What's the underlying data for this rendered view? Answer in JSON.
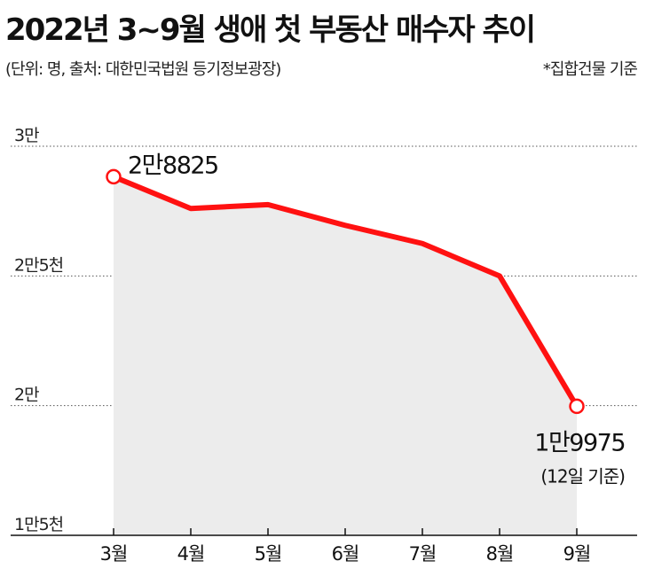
{
  "header": {
    "title": "2022년 3~9월 생애 첫 부동산 매수자 추이",
    "subtitle": "(단위: 명,  출처: 대한민국법원 등기정보광장)",
    "note": "*집합건물 기준"
  },
  "chart_data": {
    "type": "area",
    "categories": [
      "3월",
      "4월",
      "5월",
      "6월",
      "7월",
      "8월",
      "9월"
    ],
    "values": [
      28825,
      27600,
      27750,
      26950,
      26250,
      25000,
      19975
    ],
    "ylim": [
      15000,
      30000
    ],
    "yticks": [
      {
        "value": 30000,
        "label": "3만"
      },
      {
        "value": 25000,
        "label": "2만5천"
      },
      {
        "value": 20000,
        "label": "2만"
      },
      {
        "value": 15000,
        "label": "1만5천"
      }
    ],
    "annotations": [
      {
        "index": 0,
        "label": "2만8825"
      },
      {
        "index": 6,
        "label": "1만9975",
        "sublabel": "(12일 기준)"
      }
    ],
    "grid": true,
    "colors": {
      "line": "#ff1111",
      "area": "#ececec",
      "grid": "#555555",
      "axis": "#111111"
    }
  }
}
